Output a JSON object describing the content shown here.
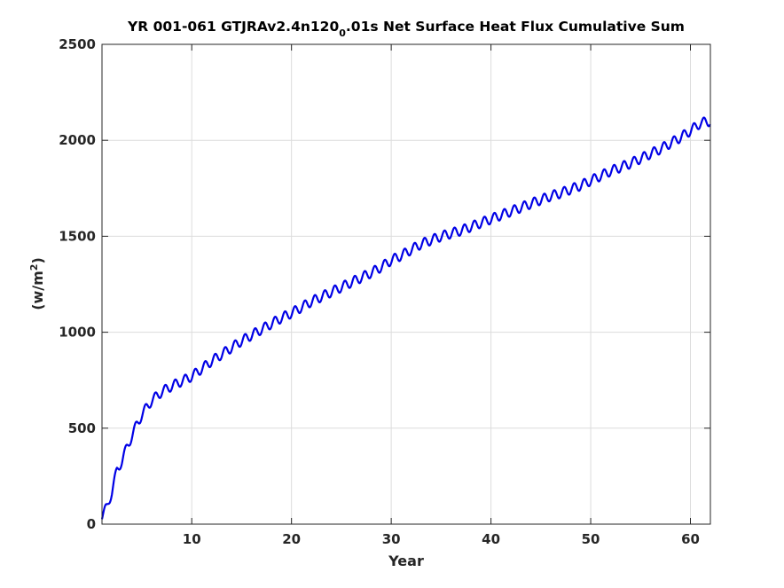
{
  "chart_data": {
    "type": "line",
    "title": {
      "prefix": "YR 001-061 GTJRAv2.4n120",
      "subscript": "0",
      "suffix": ".01s Net Surface Heat Flux  Cumulative Sum"
    },
    "xlabel": "Year",
    "ylabel": {
      "prefix": "(w/m",
      "superscript": "2",
      "suffix": ")"
    },
    "xlim": [
      1,
      62
    ],
    "ylim": [
      0,
      2500
    ],
    "xticks": [
      10,
      20,
      30,
      40,
      50,
      60
    ],
    "xtick_labels": [
      "10",
      "20",
      "30",
      "40",
      "50",
      "60"
    ],
    "yticks": [
      0,
      500,
      1000,
      1500,
      2000,
      2500
    ],
    "ytick_labels": [
      "0",
      "500",
      "1000",
      "1500",
      "2000",
      "2500"
    ],
    "grid": true,
    "series": [
      {
        "color": "#0000e6",
        "seasonal_amplitude": 25,
        "annual_mean": {
          "x": [
            1,
            1.5,
            2,
            2.5,
            3,
            3.5,
            4,
            4.5,
            5,
            5.5,
            6,
            7,
            8,
            9,
            10,
            11,
            12,
            13,
            14,
            15,
            16,
            17,
            18,
            19,
            20,
            21,
            22,
            23,
            24,
            25,
            26,
            27,
            28,
            29,
            30,
            31,
            32,
            33,
            34,
            35,
            36,
            37,
            38,
            39,
            40,
            41,
            42,
            43,
            44,
            45,
            46,
            47,
            48,
            49,
            50,
            51,
            52,
            53,
            54,
            55,
            56,
            57,
            58,
            59,
            60,
            61,
            62
          ],
          "y": [
            40,
            90,
            170,
            280,
            330,
            400,
            460,
            520,
            570,
            610,
            645,
            690,
            720,
            745,
            770,
            810,
            850,
            885,
            920,
            955,
            985,
            1015,
            1045,
            1075,
            1100,
            1130,
            1160,
            1185,
            1210,
            1235,
            1260,
            1285,
            1310,
            1340,
            1375,
            1400,
            1430,
            1460,
            1480,
            1500,
            1515,
            1530,
            1550,
            1570,
            1590,
            1610,
            1630,
            1650,
            1670,
            1690,
            1710,
            1725,
            1745,
            1765,
            1790,
            1815,
            1840,
            1860,
            1880,
            1905,
            1930,
            1955,
            1985,
            2015,
            2050,
            2090,
            2100
          ]
        }
      }
    ]
  }
}
